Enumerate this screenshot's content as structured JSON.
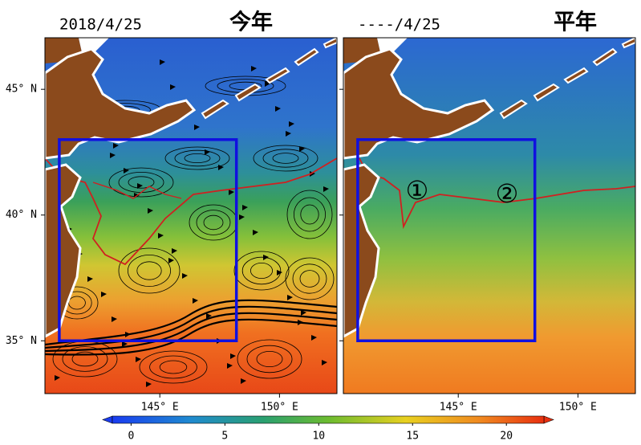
{
  "panels": [
    {
      "date": "2018/4/25",
      "title": "今年"
    },
    {
      "date": "----/4/25",
      "title": "平年",
      "annotations": [
        "①",
        "②"
      ]
    }
  ],
  "lon_range": [
    140.2,
    152.4
  ],
  "lat_range": [
    32.9,
    47.05
  ],
  "lat_ticks": [
    {
      "value": 45,
      "label": "45° N"
    },
    {
      "value": 40,
      "label": "40° N"
    },
    {
      "value": 35,
      "label": "35° N"
    }
  ],
  "lon_ticks": [
    {
      "value": 145,
      "label": "145° E"
    },
    {
      "value": 150,
      "label": "150° E"
    }
  ],
  "region": {
    "lon": [
      140.8,
      148.2
    ],
    "lat": [
      35,
      43
    ]
  },
  "colorbar": {
    "range": [
      -1,
      22
    ],
    "ticks": [
      0,
      5,
      10,
      15,
      20
    ]
  }
}
